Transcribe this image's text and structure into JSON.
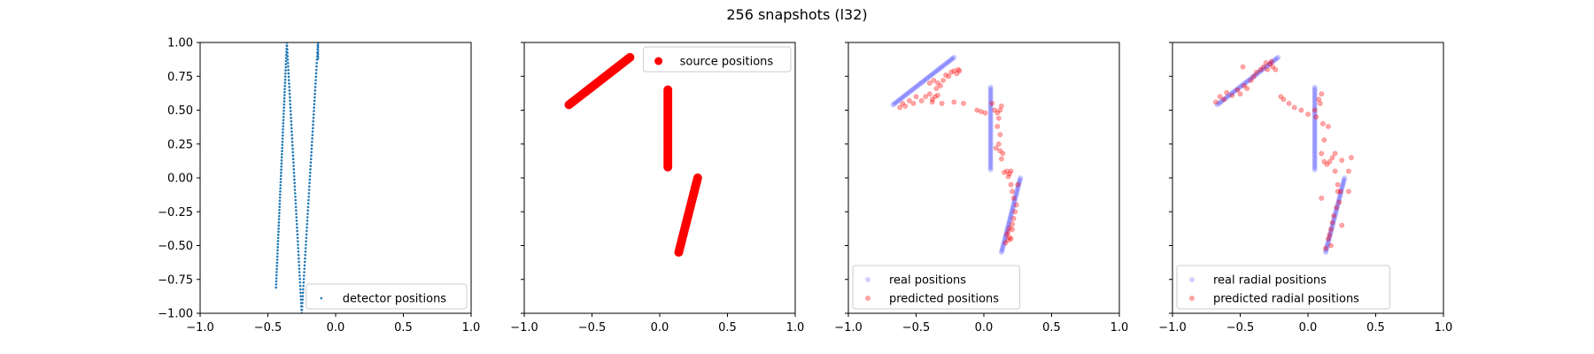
{
  "figure": {
    "title": "256 snapshots (l32)",
    "colors": {
      "blue_dots": "#1f77b4",
      "red": "#ff0000",
      "blue_real": "#0000ff"
    }
  },
  "chart_data": [
    {
      "type": "scatter",
      "xlim": [
        -1,
        1
      ],
      "ylim": [
        -1,
        1
      ],
      "xticks": [
        "−1.0",
        "−0.5",
        "0.0",
        "0.5",
        "1.0"
      ],
      "yticks": [
        "1.00",
        "0.75",
        "0.50",
        "0.25",
        "0.00",
        "−0.25",
        "−0.50",
        "−0.75",
        "−1.00"
      ],
      "legend_position": "bottom-right",
      "series": [
        {
          "name": "detector positions",
          "color": "#1f77b4",
          "marker": "dot",
          "lines": [
            {
              "from": [
                -0.44,
                -0.81
              ],
              "to": [
                -0.36,
                1.0
              ],
              "count": 80
            },
            {
              "from": [
                -0.36,
                1.0
              ],
              "to": [
                -0.25,
                -1.0
              ],
              "count": 80
            },
            {
              "from": [
                -0.25,
                -1.0
              ],
              "to": [
                -0.13,
                1.0
              ],
              "count": 80
            },
            {
              "from": [
                -0.13,
                0.88
              ],
              "to": [
                -0.13,
                1.0
              ],
              "count": 8
            }
          ]
        }
      ]
    },
    {
      "type": "scatter",
      "xlim": [
        -1,
        1
      ],
      "ylim": [
        -1,
        1
      ],
      "xticks": [
        "−1.0",
        "−0.5",
        "0.0",
        "0.5",
        "1.0"
      ],
      "legend_position": "top-right",
      "series": [
        {
          "name": "source positions",
          "color": "#ff0000",
          "marker": "large",
          "segments": [
            {
              "from": [
                -0.67,
                0.54
              ],
              "to": [
                -0.22,
                0.89
              ],
              "count": 40
            },
            {
              "from": [
                0.06,
                0.65
              ],
              "to": [
                0.06,
                0.08
              ],
              "count": 40
            },
            {
              "from": [
                0.14,
                -0.55
              ],
              "to": [
                0.28,
                0.0
              ],
              "count": 40
            }
          ]
        }
      ]
    },
    {
      "type": "scatter",
      "xlim": [
        -1,
        1
      ],
      "ylim": [
        -1,
        1
      ],
      "xticks": [
        "−1.0",
        "−0.5",
        "0.0",
        "0.5",
        "1.0"
      ],
      "legend_position": "bottom-left",
      "series": [
        {
          "name": "real positions",
          "color": "#0000ff",
          "marker": "faint",
          "segments": [
            {
              "from": [
                -0.67,
                0.54
              ],
              "to": [
                -0.22,
                0.89
              ],
              "count": 45
            },
            {
              "from": [
                0.05,
                0.67
              ],
              "to": [
                0.05,
                0.06
              ],
              "count": 45
            },
            {
              "from": [
                0.13,
                -0.55
              ],
              "to": [
                0.27,
                0.0
              ],
              "count": 45
            }
          ]
        },
        {
          "name": "predicted positions",
          "color": "#ff0000",
          "marker": "small",
          "points": [
            [
              -0.62,
              0.52
            ],
            [
              -0.6,
              0.55
            ],
            [
              -0.58,
              0.53
            ],
            [
              -0.55,
              0.57
            ],
            [
              -0.52,
              0.55
            ],
            [
              -0.5,
              0.6
            ],
            [
              -0.46,
              0.57
            ],
            [
              -0.43,
              0.6
            ],
            [
              -0.4,
              0.62
            ],
            [
              -0.38,
              0.58
            ],
            [
              -0.36,
              0.6
            ],
            [
              -0.34,
              0.61
            ],
            [
              -0.4,
              0.7
            ],
            [
              -0.37,
              0.72
            ],
            [
              -0.34,
              0.7
            ],
            [
              -0.32,
              0.68
            ],
            [
              -0.3,
              0.72
            ],
            [
              -0.28,
              0.76
            ],
            [
              -0.26,
              0.75
            ],
            [
              -0.24,
              0.78
            ],
            [
              -0.2,
              0.77
            ],
            [
              -0.19,
              0.8
            ],
            [
              -0.22,
              0.79
            ],
            [
              -0.18,
              0.79
            ],
            [
              -0.35,
              0.66
            ],
            [
              -0.38,
              0.56
            ],
            [
              -0.31,
              0.55
            ],
            [
              -0.22,
              0.56
            ],
            [
              -0.15,
              0.55
            ],
            [
              -0.05,
              0.5
            ],
            [
              -0.02,
              0.49
            ],
            [
              0.01,
              0.48
            ],
            [
              0.06,
              0.55
            ],
            [
              0.08,
              0.5
            ],
            [
              0.1,
              0.48
            ],
            [
              0.12,
              0.5
            ],
            [
              0.13,
              0.53
            ],
            [
              0.11,
              0.44
            ],
            [
              0.1,
              0.38
            ],
            [
              0.12,
              0.32
            ],
            [
              0.11,
              0.25
            ],
            [
              0.09,
              0.22
            ],
            [
              0.12,
              0.2
            ],
            [
              0.14,
              0.18
            ],
            [
              0.13,
              0.14
            ],
            [
              0.15,
              0.04
            ],
            [
              0.17,
              0.05
            ],
            [
              0.19,
              0.03
            ],
            [
              0.2,
              0.05
            ],
            [
              0.18,
              0.01
            ],
            [
              0.2,
              -0.05
            ],
            [
              0.21,
              -0.1
            ],
            [
              0.22,
              -0.15
            ],
            [
              0.24,
              -0.2
            ],
            [
              0.23,
              -0.25
            ],
            [
              0.22,
              -0.3
            ],
            [
              0.21,
              -0.34
            ],
            [
              0.19,
              -0.37
            ],
            [
              0.18,
              -0.4
            ],
            [
              0.17,
              -0.42
            ],
            [
              0.19,
              -0.44
            ],
            [
              0.18,
              -0.46
            ],
            [
              0.2,
              -0.45
            ],
            [
              0.16,
              -0.48
            ],
            [
              0.21,
              -0.38
            ],
            [
              0.25,
              -0.05
            ]
          ]
        }
      ]
    },
    {
      "type": "scatter",
      "xlim": [
        -1,
        1
      ],
      "ylim": [
        -1,
        1
      ],
      "xticks": [
        "−1.0",
        "−0.5",
        "0.0",
        "0.5",
        "1.0"
      ],
      "legend_position": "bottom-left",
      "series": [
        {
          "name": "real radial positions",
          "color": "#0000ff",
          "marker": "faint",
          "segments": [
            {
              "from": [
                -0.67,
                0.54
              ],
              "to": [
                -0.22,
                0.89
              ],
              "count": 45
            },
            {
              "from": [
                0.05,
                0.67
              ],
              "to": [
                0.05,
                0.06
              ],
              "count": 45
            },
            {
              "from": [
                0.13,
                -0.55
              ],
              "to": [
                0.27,
                0.0
              ],
              "count": 45
            }
          ]
        },
        {
          "name": "predicted radial positions",
          "color": "#ff0000",
          "marker": "small",
          "points": [
            [
              -0.68,
              0.56
            ],
            [
              -0.65,
              0.6
            ],
            [
              -0.62,
              0.58
            ],
            [
              -0.6,
              0.63
            ],
            [
              -0.56,
              0.61
            ],
            [
              -0.52,
              0.65
            ],
            [
              -0.5,
              0.62
            ],
            [
              -0.47,
              0.68
            ],
            [
              -0.45,
              0.66
            ],
            [
              -0.42,
              0.72
            ],
            [
              -0.4,
              0.75
            ],
            [
              -0.38,
              0.78
            ],
            [
              -0.35,
              0.8
            ],
            [
              -0.33,
              0.82
            ],
            [
              -0.31,
              0.85
            ],
            [
              -0.28,
              0.84
            ],
            [
              -0.26,
              0.82
            ],
            [
              -0.24,
              0.8
            ],
            [
              -0.3,
              0.8
            ],
            [
              -0.27,
              0.86
            ],
            [
              -0.48,
              0.82
            ],
            [
              -0.2,
              0.6
            ],
            [
              -0.18,
              0.58
            ],
            [
              -0.14,
              0.55
            ],
            [
              -0.1,
              0.52
            ],
            [
              -0.05,
              0.5
            ],
            [
              0.0,
              0.47
            ],
            [
              0.05,
              0.5
            ],
            [
              0.06,
              0.45
            ],
            [
              0.08,
              0.58
            ],
            [
              0.1,
              0.62
            ],
            [
              0.09,
              0.55
            ],
            [
              0.11,
              0.4
            ],
            [
              0.12,
              0.28
            ],
            [
              0.1,
              0.18
            ],
            [
              0.12,
              0.12
            ],
            [
              0.14,
              0.1
            ],
            [
              0.16,
              0.12
            ],
            [
              0.18,
              0.15
            ],
            [
              0.2,
              0.18
            ],
            [
              0.25,
              0.13
            ],
            [
              0.3,
              0.05
            ],
            [
              0.32,
              0.15
            ],
            [
              0.2,
              0.05
            ],
            [
              0.22,
              -0.05
            ],
            [
              0.24,
              -0.1
            ],
            [
              0.23,
              -0.18
            ],
            [
              0.21,
              -0.22
            ],
            [
              0.19,
              -0.28
            ],
            [
              0.18,
              -0.33
            ],
            [
              0.17,
              -0.38
            ],
            [
              0.16,
              -0.42
            ],
            [
              0.15,
              -0.45
            ],
            [
              0.17,
              -0.5
            ],
            [
              0.13,
              -0.52
            ],
            [
              0.25,
              -0.35
            ],
            [
              0.22,
              -0.1
            ],
            [
              0.1,
              -0.15
            ],
            [
              0.15,
              0.38
            ],
            [
              0.3,
              -0.1
            ]
          ]
        }
      ]
    }
  ]
}
